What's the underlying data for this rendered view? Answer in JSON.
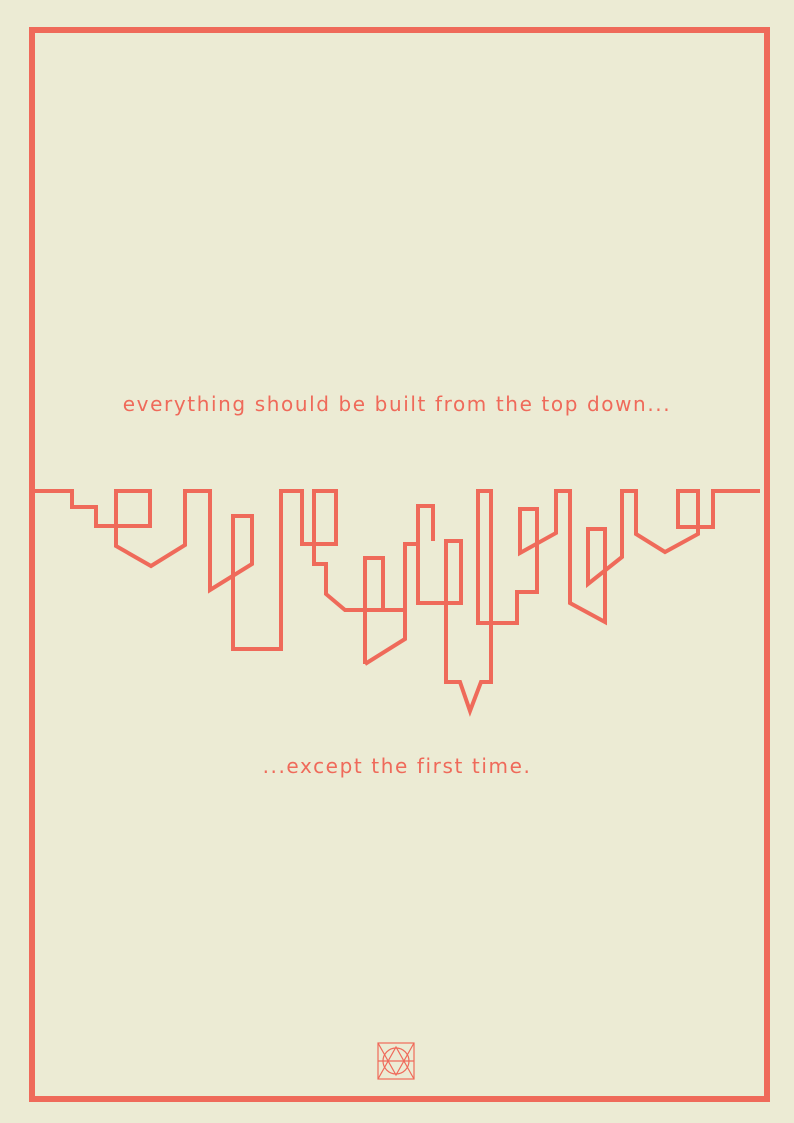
{
  "poster": {
    "top_text": "everything should be built from the top down...",
    "bottom_text": "...except the first time.",
    "accent_color": "#ef6a5a",
    "background_color": "#ecebd4",
    "illustration": "inverted-skyline-line-art",
    "logo": "geometric-monogram-logo"
  }
}
